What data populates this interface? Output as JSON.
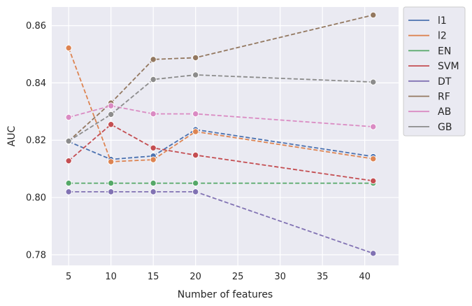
{
  "chart_data": {
    "type": "line",
    "xlabel": "Number of features",
    "ylabel": "AUC",
    "xlim": [
      3,
      44
    ],
    "ylim": [
      0.7763,
      0.8665
    ],
    "xticks": [
      5,
      10,
      15,
      20,
      25,
      30,
      35,
      40
    ],
    "yticks": [
      0.78,
      0.8,
      0.82,
      0.84,
      0.86
    ],
    "x": [
      5,
      10,
      15,
      20,
      41
    ],
    "grid": true,
    "legend_position": "outside-right",
    "line_style": "dashed",
    "marker": "circle",
    "series": [
      {
        "name": "l1",
        "color": "#4c72b0",
        "values": [
          0.8195,
          0.8133,
          0.8145,
          0.8237,
          0.8143
        ]
      },
      {
        "name": "l2",
        "color": "#dd8452",
        "values": [
          0.8522,
          0.8125,
          0.8132,
          0.823,
          0.8135
        ]
      },
      {
        "name": "EN",
        "color": "#55a868",
        "values": [
          0.805,
          0.805,
          0.805,
          0.805,
          0.805
        ]
      },
      {
        "name": "SVM",
        "color": "#c44e52",
        "values": [
          0.8128,
          0.8255,
          0.8173,
          0.8148,
          0.8058
        ]
      },
      {
        "name": "DT",
        "color": "#8172b3",
        "values": [
          0.802,
          0.802,
          0.802,
          0.802,
          0.7805
        ]
      },
      {
        "name": "RF",
        "color": "#937860",
        "values": [
          0.8197,
          0.833,
          0.8482,
          0.8488,
          0.8637
        ]
      },
      {
        "name": "AB",
        "color": "#da8bc3",
        "values": [
          0.828,
          0.832,
          0.8292,
          0.8292,
          0.8247
        ]
      },
      {
        "name": "GB",
        "color": "#8c8c8c",
        "values": [
          0.8197,
          0.829,
          0.8412,
          0.8428,
          0.8403
        ]
      }
    ]
  }
}
